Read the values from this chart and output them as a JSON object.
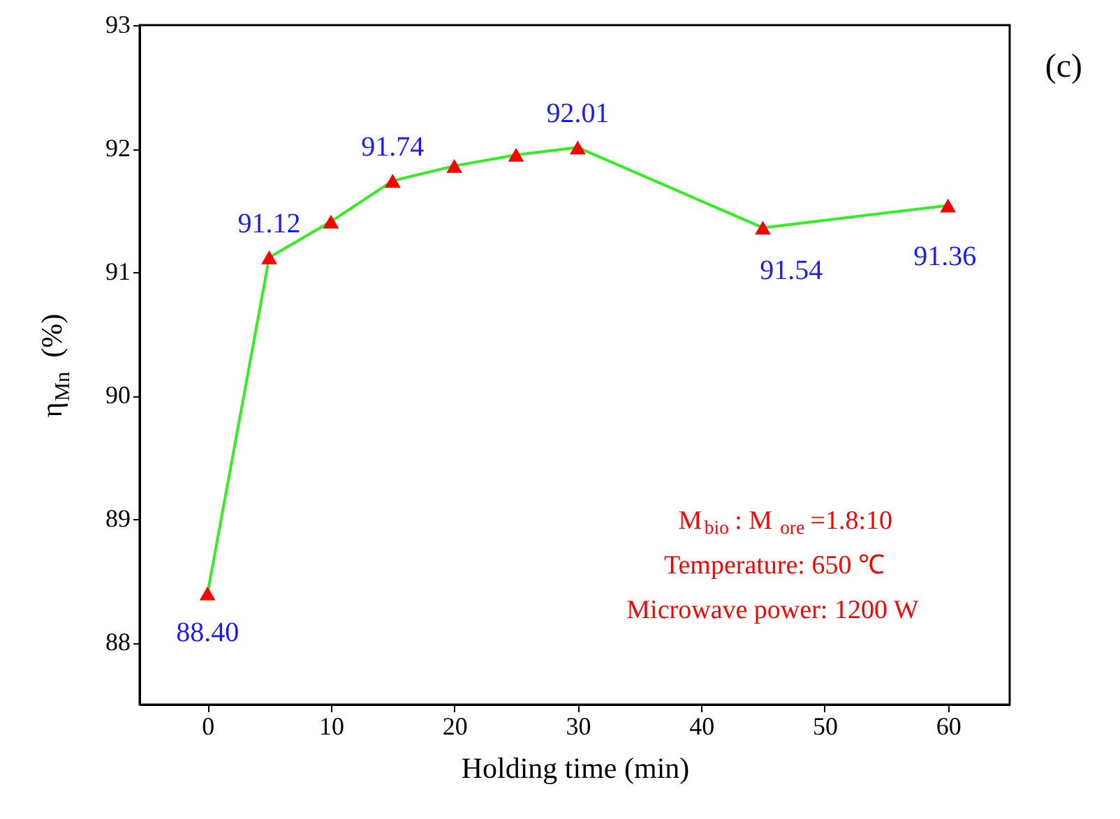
{
  "chart_data": {
    "type": "line",
    "xlabel": "Holding time (min)",
    "ylabel": "η$_{Mn}$ (%)",
    "x": [
      0,
      5,
      10,
      15,
      20,
      25,
      30,
      45,
      60
    ],
    "series": [
      {
        "color": "#33ee22",
        "values": [
          88.4,
          91.12,
          91.41,
          91.74,
          91.86,
          91.95,
          92.01,
          91.36,
          91.54
        ],
        "value_labels": [
          "88.40",
          "91.12",
          null,
          "91.74",
          null,
          null,
          "92.01",
          null,
          null
        ]
      }
    ],
    "marker": "triangle",
    "line_style": "solid",
    "grid": false,
    "xlim": [
      -5.5,
      65
    ],
    "xticks": [
      0,
      10,
      20,
      30,
      40,
      50,
      60
    ],
    "ylim": [
      87.5,
      93
    ],
    "yticks": [
      88,
      89,
      90,
      91,
      92,
      93
    ],
    "annotations": [
      "91.54",
      "91.36",
      "M$_{bio}$: M$_{ore}$=1.8:10",
      "Temperature: 650 ℃",
      "Microwave power: 1200 W",
      "(c)"
    ]
  }
}
